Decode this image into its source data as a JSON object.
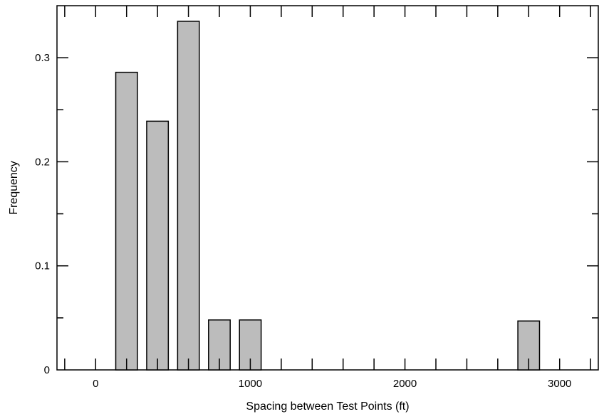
{
  "chart_data": {
    "type": "bar",
    "xlabel": "Spacing between Test Points (ft)",
    "ylabel": "Frequency",
    "xlim": [
      -250,
      3250
    ],
    "ylim": [
      0,
      0.35
    ],
    "x_ticks": [
      0,
      1000,
      2000,
      3000
    ],
    "x_tick_labels": [
      "0",
      "1000",
      "2000",
      "3000"
    ],
    "y_ticks": [
      0,
      0.1,
      0.2,
      0.3
    ],
    "y_tick_labels": [
      "0",
      "0.1",
      "0.2",
      "0.3"
    ],
    "bar_width": 140,
    "bar_fill": "#bcbcbc",
    "bar_stroke": "#000000",
    "grid": false,
    "bars": [
      {
        "x": 200,
        "value": 0.286
      },
      {
        "x": 400,
        "value": 0.239
      },
      {
        "x": 600,
        "value": 0.335
      },
      {
        "x": 800,
        "value": 0.048
      },
      {
        "x": 1000,
        "value": 0.048
      },
      {
        "x": 2800,
        "value": 0.047
      }
    ]
  }
}
